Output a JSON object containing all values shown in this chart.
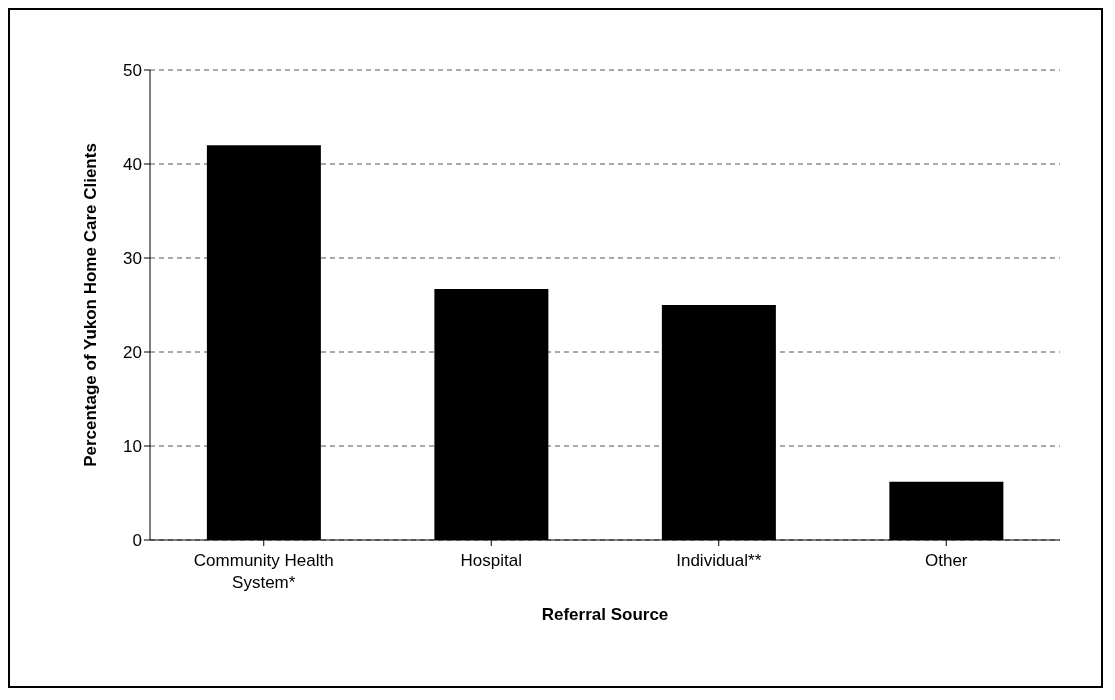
{
  "chart_data": {
    "type": "bar",
    "xlabel": "Referral Source",
    "ylabel": "Percentage of Yukon Home Care Clients",
    "categories": [
      "Community Health System*",
      "Hospital",
      "Individual**",
      "Other"
    ],
    "values": [
      42,
      26.7,
      25,
      6.2
    ],
    "color": "#000000",
    "ylim": [
      0,
      50
    ],
    "yticks": [
      0,
      10,
      20,
      30,
      40,
      50
    ],
    "grid": "y"
  }
}
